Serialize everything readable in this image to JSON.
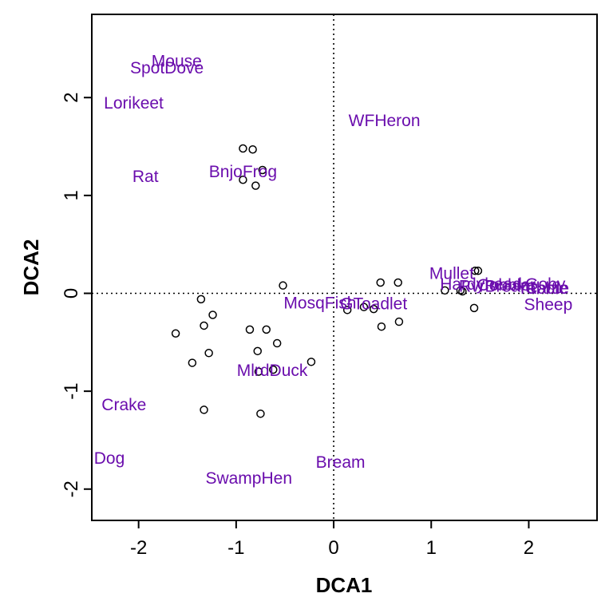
{
  "chart_data": {
    "type": "scatter",
    "title": "",
    "xlabel": "DCA1",
    "ylabel": "DCA2",
    "xlim": [
      -2.48,
      2.7
    ],
    "ylim": [
      -2.32,
      2.85
    ],
    "xticks": [
      -2,
      -1,
      0,
      1,
      2
    ],
    "yticks": [
      -2,
      -1,
      0,
      1,
      2
    ],
    "reference_lines": {
      "x": 0,
      "y": 0,
      "style": "dotted"
    },
    "grid": false,
    "colors": {
      "labels": "#6a0dad",
      "points": "#000000",
      "axes": "#000000"
    },
    "sites": [
      {
        "x": -0.93,
        "y": 1.48
      },
      {
        "x": -0.83,
        "y": 1.47
      },
      {
        "x": -0.73,
        "y": 1.26
      },
      {
        "x": -0.93,
        "y": 1.16
      },
      {
        "x": -0.8,
        "y": 1.1
      },
      {
        "x": -0.52,
        "y": 0.08
      },
      {
        "x": -1.36,
        "y": -0.06
      },
      {
        "x": -1.24,
        "y": -0.22
      },
      {
        "x": -1.33,
        "y": -0.33
      },
      {
        "x": -1.62,
        "y": -0.41
      },
      {
        "x": -0.86,
        "y": -0.37
      },
      {
        "x": -0.69,
        "y": -0.37
      },
      {
        "x": -0.58,
        "y": -0.51
      },
      {
        "x": -1.28,
        "y": -0.61
      },
      {
        "x": -0.78,
        "y": -0.59
      },
      {
        "x": -1.45,
        "y": -0.71
      },
      {
        "x": -0.23,
        "y": -0.7
      },
      {
        "x": -0.77,
        "y": -0.8
      },
      {
        "x": -0.62,
        "y": -0.78
      },
      {
        "x": -1.33,
        "y": -1.19
      },
      {
        "x": -0.75,
        "y": -1.23
      },
      {
        "x": 0.48,
        "y": 0.11
      },
      {
        "x": 0.66,
        "y": 0.11
      },
      {
        "x": 0.14,
        "y": -0.17
      },
      {
        "x": 0.31,
        "y": -0.14
      },
      {
        "x": 0.41,
        "y": -0.16
      },
      {
        "x": 0.49,
        "y": -0.34
      },
      {
        "x": 0.67,
        "y": -0.29
      },
      {
        "x": 1.14,
        "y": 0.03
      },
      {
        "x": 1.3,
        "y": 0.03
      },
      {
        "x": 1.32,
        "y": 0.02
      },
      {
        "x": 1.45,
        "y": 0.23
      },
      {
        "x": 1.48,
        "y": 0.23
      },
      {
        "x": 1.44,
        "y": -0.15
      }
    ],
    "species": [
      {
        "name": "Mouse",
        "x": -1.61,
        "y": 2.37
      },
      {
        "name": "SpotDove",
        "x": -1.71,
        "y": 2.3
      },
      {
        "name": "Lorikeet",
        "x": -2.05,
        "y": 1.94
      },
      {
        "name": "WFHeron",
        "x": 0.52,
        "y": 1.76
      },
      {
        "name": "Rat",
        "x": -1.93,
        "y": 1.19
      },
      {
        "name": "BnjoFrog",
        "x": -0.93,
        "y": 1.24
      },
      {
        "name": "Mullet",
        "x": 1.21,
        "y": 0.2
      },
      {
        "name": "Hardyhead",
        "x": 1.51,
        "y": 0.09
      },
      {
        "name": "Cobbler",
        "x": 1.77,
        "y": 0.08
      },
      {
        "name": "RvrBream",
        "x": 1.67,
        "y": 0.07
      },
      {
        "name": "Goby",
        "x": 2.17,
        "y": 0.09
      },
      {
        "name": "Yabbie",
        "x": 2.14,
        "y": 0.05
      },
      {
        "name": "Cattle",
        "x": 2.19,
        "y": 0.05
      },
      {
        "name": "Sheep",
        "x": 2.2,
        "y": -0.12
      },
      {
        "name": "MosqFish",
        "x": -0.14,
        "y": -0.1
      },
      {
        "name": "GToadlet",
        "x": 0.41,
        "y": -0.11
      },
      {
        "name": "MlrdDuck",
        "x": -0.63,
        "y": -0.79
      },
      {
        "name": "Crake",
        "x": -2.15,
        "y": -1.14
      },
      {
        "name": "Dog",
        "x": -2.3,
        "y": -1.69
      },
      {
        "name": "Bream",
        "x": 0.07,
        "y": -1.73
      },
      {
        "name": "SwampHen",
        "x": -0.87,
        "y": -1.89
      }
    ]
  }
}
